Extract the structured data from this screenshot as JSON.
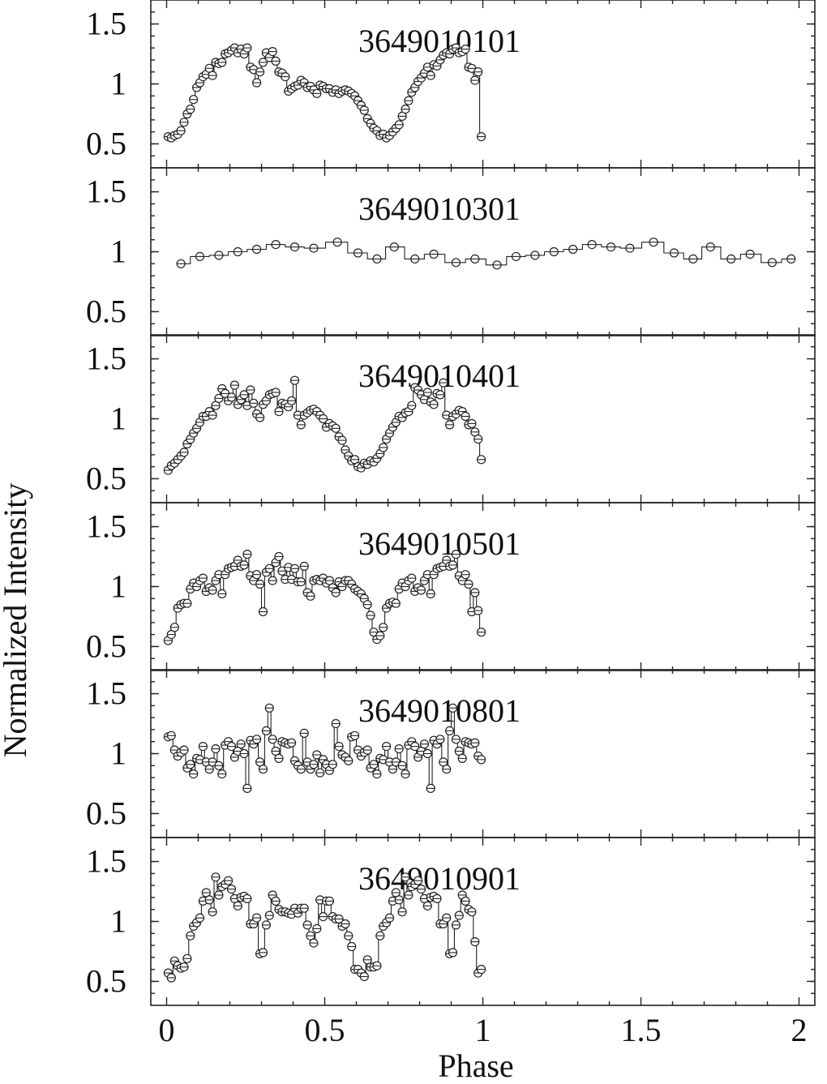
{
  "chart_data": {
    "type": "line",
    "xlabel": "Phase",
    "ylabel": "Normalized Intensity",
    "xlim": [
      -0.05,
      2.05
    ],
    "ylim": [
      0.3,
      1.7
    ],
    "xticks": [
      0,
      0.5,
      1,
      1.5,
      2
    ],
    "xtick_labels": [
      "0",
      "0.5",
      "1",
      "1.5",
      "2"
    ],
    "yticks": [
      0.5,
      1,
      1.5
    ],
    "ytick_labels": [
      "0.5",
      "1",
      "1.5"
    ],
    "grid": false,
    "panels": [
      {
        "title": "3649010101",
        "x": [
          0.005,
          0.015,
          0.025,
          0.035,
          0.045,
          0.055,
          0.065,
          0.075,
          0.085,
          0.095,
          0.105,
          0.115,
          0.125,
          0.135,
          0.145,
          0.155,
          0.165,
          0.175,
          0.185,
          0.195,
          0.205,
          0.215,
          0.225,
          0.235,
          0.245,
          0.255,
          0.265,
          0.275,
          0.285,
          0.295,
          0.305,
          0.315,
          0.325,
          0.335,
          0.345,
          0.355,
          0.365,
          0.375,
          0.385,
          0.395,
          0.405,
          0.415,
          0.425,
          0.435,
          0.445,
          0.455,
          0.465,
          0.475,
          0.485,
          0.495,
          0.505,
          0.515,
          0.525,
          0.535,
          0.545,
          0.555,
          0.565,
          0.575,
          0.585,
          0.595,
          0.605,
          0.615,
          0.625,
          0.635,
          0.645,
          0.655,
          0.665,
          0.675,
          0.685,
          0.695,
          0.705,
          0.715,
          0.725,
          0.735,
          0.745,
          0.755,
          0.765,
          0.775,
          0.785,
          0.795,
          0.805,
          0.815,
          0.825,
          0.835,
          0.845,
          0.855,
          0.865,
          0.875,
          0.885,
          0.895,
          0.905,
          0.915,
          0.925,
          0.935,
          0.945,
          0.955,
          0.965,
          0.975,
          0.985,
          0.995
        ],
        "values": [
          0.56,
          0.55,
          0.57,
          0.58,
          0.61,
          0.68,
          0.75,
          0.79,
          0.87,
          0.97,
          1.01,
          1.06,
          1.08,
          1.13,
          1.07,
          1.18,
          1.17,
          1.18,
          1.25,
          1.26,
          1.28,
          1.3,
          1.26,
          1.29,
          1.25,
          1.3,
          1.14,
          1.12,
          1.01,
          1.1,
          1.18,
          1.26,
          1.22,
          1.27,
          1.19,
          1.1,
          1.09,
          1.06,
          0.94,
          0.96,
          0.98,
          0.99,
          1.03,
          1.01,
          0.97,
          0.98,
          0.95,
          0.92,
          0.99,
          0.98,
          0.96,
          0.96,
          0.93,
          0.95,
          0.92,
          0.94,
          0.95,
          0.94,
          0.92,
          0.9,
          0.86,
          0.82,
          0.78,
          0.71,
          0.67,
          0.63,
          0.61,
          0.57,
          0.58,
          0.55,
          0.57,
          0.6,
          0.63,
          0.66,
          0.73,
          0.79,
          0.86,
          0.93,
          0.97,
          1.02,
          1.05,
          1.09,
          1.14,
          1.07,
          1.16,
          1.15,
          1.2,
          1.24,
          1.26,
          1.25,
          1.29,
          1.3,
          1.26,
          1.27,
          1.29,
          1.14,
          1.13,
          1.03,
          1.1,
          0.56
        ]
      },
      {
        "title": "3649010301",
        "x": [
          0.045,
          0.105,
          0.165,
          0.225,
          0.285,
          0.345,
          0.405,
          0.465,
          0.54,
          0.605,
          0.665,
          0.72,
          0.785,
          0.845,
          0.915,
          0.975,
          1.045,
          1.105,
          1.165,
          1.225,
          1.285,
          1.345,
          1.405,
          1.465,
          1.54,
          1.605,
          1.665,
          1.72,
          1.785,
          1.845,
          1.915,
          1.975
        ],
        "values": [
          0.9,
          0.96,
          0.97,
          1.0,
          1.02,
          1.06,
          1.04,
          1.03,
          1.08,
          0.99,
          0.94,
          1.04,
          0.94,
          0.98,
          0.91,
          0.94,
          0.89,
          0.96,
          0.97,
          1.0,
          1.02,
          1.06,
          1.04,
          1.03,
          1.08,
          0.99,
          0.94,
          1.04,
          0.94,
          0.98,
          0.91,
          0.94
        ]
      },
      {
        "title": "3649010401",
        "x": [
          0.005,
          0.015,
          0.025,
          0.035,
          0.045,
          0.055,
          0.065,
          0.075,
          0.085,
          0.095,
          0.105,
          0.115,
          0.125,
          0.135,
          0.145,
          0.155,
          0.165,
          0.175,
          0.185,
          0.195,
          0.205,
          0.215,
          0.225,
          0.235,
          0.245,
          0.255,
          0.265,
          0.275,
          0.285,
          0.295,
          0.305,
          0.315,
          0.325,
          0.335,
          0.345,
          0.355,
          0.365,
          0.375,
          0.385,
          0.395,
          0.405,
          0.415,
          0.425,
          0.435,
          0.445,
          0.455,
          0.465,
          0.475,
          0.485,
          0.495,
          0.505,
          0.515,
          0.525,
          0.535,
          0.545,
          0.555,
          0.565,
          0.575,
          0.585,
          0.595,
          0.605,
          0.615,
          0.625,
          0.635,
          0.645,
          0.655,
          0.665,
          0.675,
          0.685,
          0.695,
          0.705,
          0.715,
          0.725,
          0.735,
          0.745,
          0.755,
          0.765,
          0.775,
          0.785,
          0.795,
          0.805,
          0.815,
          0.825,
          0.835,
          0.845,
          0.855,
          0.865,
          0.875,
          0.885,
          0.895,
          0.905,
          0.915,
          0.925,
          0.935,
          0.945,
          0.955,
          0.965,
          0.975,
          0.985,
          0.995
        ],
        "values": [
          0.57,
          0.61,
          0.63,
          0.66,
          0.69,
          0.72,
          0.79,
          0.83,
          0.88,
          0.92,
          0.97,
          1.02,
          1.02,
          1.06,
          1.03,
          1.11,
          1.17,
          1.25,
          1.21,
          1.15,
          1.18,
          1.28,
          1.12,
          1.16,
          1.2,
          1.11,
          1.24,
          1.13,
          1.04,
          1.01,
          1.12,
          1.15,
          1.2,
          1.21,
          1.22,
          1.06,
          1.13,
          1.12,
          1.1,
          1.15,
          1.32,
          1.03,
          0.95,
          1.03,
          1.05,
          1.07,
          1.08,
          1.06,
          1.03,
          1.0,
          0.93,
          0.96,
          0.94,
          0.92,
          0.85,
          0.82,
          0.74,
          0.69,
          0.65,
          0.66,
          0.6,
          0.59,
          0.63,
          0.62,
          0.65,
          0.64,
          0.67,
          0.71,
          0.76,
          0.83,
          0.88,
          0.93,
          0.97,
          1.02,
          1.01,
          1.05,
          1.06,
          1.11,
          1.26,
          1.24,
          1.2,
          1.16,
          1.22,
          1.14,
          1.12,
          1.21,
          1.2,
          1.3,
          1.03,
          0.95,
          1.02,
          1.04,
          1.07,
          1.06,
          1.02,
          0.95,
          0.96,
          0.89,
          0.83,
          0.66
        ]
      },
      {
        "title": "3649010501",
        "x": [
          0.005,
          0.015,
          0.025,
          0.035,
          0.045,
          0.055,
          0.065,
          0.075,
          0.085,
          0.095,
          0.105,
          0.115,
          0.125,
          0.135,
          0.145,
          0.155,
          0.165,
          0.175,
          0.185,
          0.195,
          0.205,
          0.215,
          0.225,
          0.235,
          0.245,
          0.255,
          0.265,
          0.275,
          0.285,
          0.295,
          0.305,
          0.315,
          0.325,
          0.335,
          0.345,
          0.355,
          0.365,
          0.375,
          0.385,
          0.395,
          0.405,
          0.415,
          0.425,
          0.435,
          0.445,
          0.455,
          0.465,
          0.475,
          0.485,
          0.495,
          0.505,
          0.515,
          0.525,
          0.535,
          0.545,
          0.555,
          0.565,
          0.575,
          0.585,
          0.595,
          0.605,
          0.615,
          0.625,
          0.635,
          0.645,
          0.655,
          0.665,
          0.675,
          0.685,
          0.695,
          0.705,
          0.715,
          0.725,
          0.735,
          0.745,
          0.755,
          0.765,
          0.775,
          0.785,
          0.795,
          0.805,
          0.815,
          0.825,
          0.835,
          0.845,
          0.855,
          0.865,
          0.875,
          0.885,
          0.895,
          0.905,
          0.915,
          0.925,
          0.935,
          0.945,
          0.955,
          0.965,
          0.975,
          0.985,
          0.995
        ],
        "values": [
          0.55,
          0.6,
          0.66,
          0.82,
          0.85,
          0.86,
          0.86,
          0.98,
          1.03,
          1.0,
          1.05,
          1.07,
          0.96,
          0.99,
          0.97,
          1.05,
          1.1,
          0.94,
          1.1,
          1.15,
          1.16,
          1.17,
          1.22,
          1.17,
          1.18,
          1.27,
          1.09,
          1.05,
          1.1,
          1.02,
          0.79,
          1.12,
          1.15,
          1.05,
          1.2,
          1.25,
          1.13,
          1.06,
          1.16,
          1.06,
          1.15,
          1.04,
          1.04,
          1.17,
          0.95,
          0.92,
          1.05,
          1.06,
          1.05,
          1.07,
          1.03,
          1.05,
          0.99,
          0.95,
          1.04,
          1.0,
          1.05,
          1.05,
          1.02,
          0.98,
          0.96,
          0.94,
          0.9,
          0.85,
          0.76,
          0.62,
          0.56,
          0.59,
          0.66,
          0.82,
          0.86,
          0.87,
          0.86,
          0.98,
          1.03,
          1.0,
          1.05,
          1.07,
          0.96,
          0.99,
          0.97,
          1.05,
          1.1,
          0.94,
          1.1,
          1.15,
          1.16,
          1.17,
          1.22,
          1.17,
          1.18,
          1.27,
          1.09,
          1.05,
          1.1,
          1.02,
          0.79,
          0.95,
          0.8,
          0.62
        ]
      },
      {
        "title": "3649010801",
        "x": [
          0.005,
          0.015,
          0.025,
          0.035,
          0.045,
          0.055,
          0.065,
          0.075,
          0.085,
          0.095,
          0.105,
          0.115,
          0.125,
          0.135,
          0.145,
          0.155,
          0.165,
          0.175,
          0.185,
          0.195,
          0.205,
          0.215,
          0.225,
          0.235,
          0.245,
          0.255,
          0.265,
          0.275,
          0.285,
          0.295,
          0.305,
          0.315,
          0.325,
          0.335,
          0.345,
          0.355,
          0.365,
          0.375,
          0.385,
          0.395,
          0.405,
          0.415,
          0.425,
          0.435,
          0.445,
          0.455,
          0.465,
          0.475,
          0.485,
          0.495,
          0.505,
          0.515,
          0.525,
          0.535,
          0.545,
          0.555,
          0.565,
          0.575,
          0.585,
          0.595,
          0.605,
          0.615,
          0.625,
          0.635,
          0.645,
          0.655,
          0.665,
          0.675,
          0.685,
          0.695,
          0.705,
          0.715,
          0.725,
          0.735,
          0.745,
          0.755,
          0.765,
          0.775,
          0.785,
          0.795,
          0.805,
          0.815,
          0.825,
          0.835,
          0.845,
          0.855,
          0.865,
          0.875,
          0.885,
          0.895,
          0.905,
          0.915,
          0.925,
          0.935,
          0.945,
          0.955,
          0.965,
          0.975,
          0.985,
          0.995
        ],
        "values": [
          1.14,
          1.15,
          1.03,
          0.98,
          1.01,
          1.03,
          0.88,
          0.91,
          0.83,
          0.96,
          0.95,
          1.06,
          0.93,
          0.87,
          0.93,
          1.04,
          0.9,
          0.83,
          1.07,
          1.1,
          1.06,
          0.97,
          1.02,
          1.08,
          1.0,
          0.71,
          1.11,
          1.08,
          1.12,
          0.93,
          0.87,
          1.19,
          1.38,
          1.12,
          1.02,
          0.96,
          1.1,
          1.09,
          1.08,
          1.09,
          0.94,
          0.9,
          0.87,
          1.17,
          0.93,
          0.87,
          0.91,
          0.99,
          0.84,
          0.95,
          0.91,
          0.86,
          0.91,
          1.25,
          1.06,
          0.99,
          0.97,
          0.94,
          1.14,
          1.15,
          1.03,
          0.98,
          1.01,
          1.03,
          0.88,
          0.91,
          0.83,
          0.96,
          0.95,
          1.06,
          0.93,
          0.87,
          0.93,
          1.04,
          0.9,
          0.83,
          1.07,
          1.1,
          1.06,
          0.97,
          1.02,
          1.08,
          1.0,
          0.71,
          1.11,
          1.08,
          1.12,
          0.93,
          0.87,
          1.19,
          1.38,
          1.12,
          1.02,
          0.96,
          1.1,
          1.09,
          1.08,
          1.09,
          0.98,
          0.95
        ]
      },
      {
        "title": "3649010901",
        "x": [
          0.005,
          0.015,
          0.025,
          0.035,
          0.045,
          0.055,
          0.065,
          0.075,
          0.085,
          0.095,
          0.105,
          0.115,
          0.125,
          0.135,
          0.145,
          0.155,
          0.165,
          0.175,
          0.185,
          0.195,
          0.205,
          0.215,
          0.225,
          0.235,
          0.245,
          0.255,
          0.265,
          0.275,
          0.285,
          0.295,
          0.305,
          0.315,
          0.325,
          0.335,
          0.345,
          0.355,
          0.365,
          0.375,
          0.385,
          0.395,
          0.405,
          0.415,
          0.425,
          0.435,
          0.445,
          0.455,
          0.465,
          0.475,
          0.485,
          0.495,
          0.505,
          0.515,
          0.525,
          0.535,
          0.545,
          0.555,
          0.565,
          0.575,
          0.585,
          0.595,
          0.605,
          0.615,
          0.625,
          0.635,
          0.645,
          0.655,
          0.665,
          0.675,
          0.685,
          0.695,
          0.705,
          0.715,
          0.725,
          0.735,
          0.745,
          0.755,
          0.765,
          0.775,
          0.785,
          0.795,
          0.805,
          0.815,
          0.825,
          0.835,
          0.845,
          0.855,
          0.865,
          0.875,
          0.885,
          0.895,
          0.905,
          0.915,
          0.925,
          0.935,
          0.945,
          0.955,
          0.965,
          0.975,
          0.985,
          0.995
        ],
        "values": [
          0.57,
          0.53,
          0.67,
          0.63,
          0.61,
          0.62,
          0.69,
          0.88,
          0.96,
          0.99,
          1.03,
          1.17,
          1.24,
          1.18,
          1.08,
          1.37,
          1.22,
          1.29,
          1.31,
          1.34,
          1.27,
          1.19,
          1.13,
          1.2,
          1.21,
          1.19,
          0.98,
          0.98,
          1.03,
          0.73,
          0.74,
          0.97,
          1.05,
          1.22,
          1.17,
          1.1,
          1.08,
          1.08,
          1.07,
          1.06,
          1.11,
          1.07,
          1.11,
          1.11,
          0.97,
          0.88,
          0.82,
          0.94,
          1.18,
          1.04,
          1.17,
          1.17,
          1.04,
          1.02,
          1.02,
          0.96,
          0.98,
          0.88,
          0.79,
          0.6,
          0.6,
          0.57,
          0.54,
          0.68,
          0.62,
          0.62,
          0.63,
          0.88,
          0.96,
          0.99,
          1.03,
          1.17,
          1.24,
          1.18,
          1.08,
          1.37,
          1.22,
          1.29,
          1.31,
          1.34,
          1.27,
          1.19,
          1.13,
          1.2,
          1.21,
          1.19,
          0.98,
          0.98,
          1.03,
          0.73,
          0.74,
          0.97,
          1.05,
          1.22,
          1.17,
          1.1,
          1.08,
          0.83,
          0.57,
          0.6
        ]
      }
    ]
  }
}
